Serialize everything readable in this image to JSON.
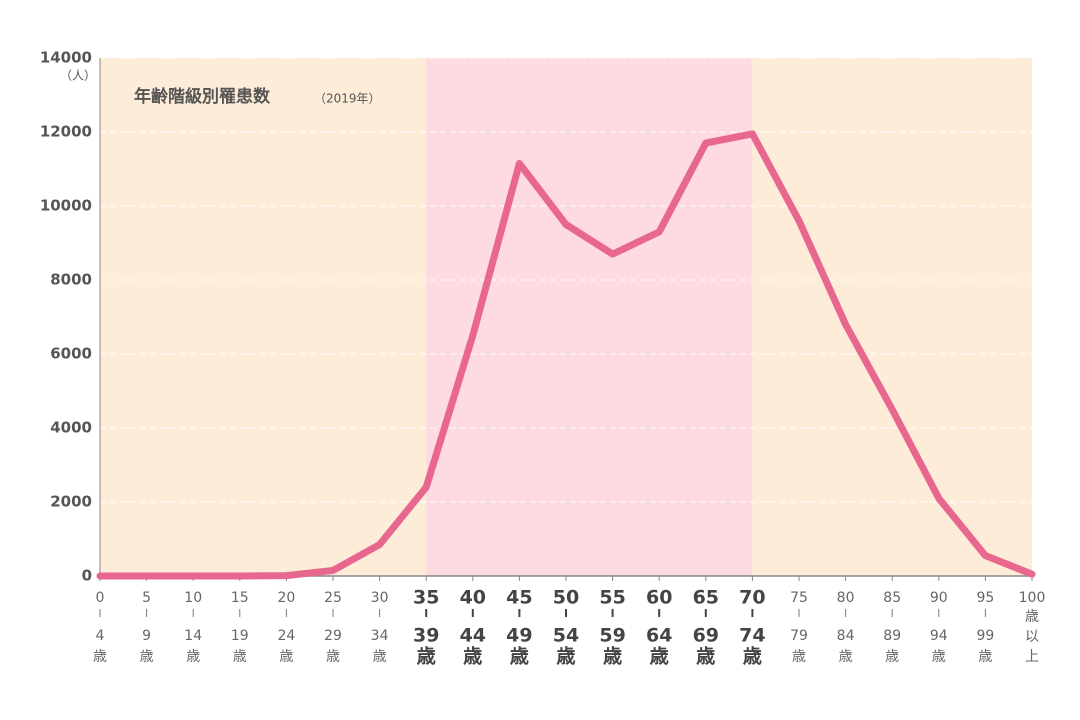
{
  "chart_data": {
    "type": "line",
    "title": "年齢階級別罹患数",
    "subtitle": "（2019年）",
    "y_unit": "（人）",
    "categories": [
      [
        "0",
        "4",
        "歳"
      ],
      [
        "5",
        "9",
        "歳"
      ],
      [
        "10",
        "14",
        "歳"
      ],
      [
        "15",
        "19",
        "歳"
      ],
      [
        "20",
        "24",
        "歳"
      ],
      [
        "25",
        "29",
        "歳"
      ],
      [
        "30",
        "34",
        "歳"
      ],
      [
        "35",
        "39",
        "歳"
      ],
      [
        "40",
        "44",
        "歳"
      ],
      [
        "45",
        "49",
        "歳"
      ],
      [
        "50",
        "54",
        "歳"
      ],
      [
        "55",
        "59",
        "歳"
      ],
      [
        "60",
        "64",
        "歳"
      ],
      [
        "65",
        "69",
        "歳"
      ],
      [
        "70",
        "74",
        "歳"
      ],
      [
        "75",
        "79",
        "歳"
      ],
      [
        "80",
        "84",
        "歳"
      ],
      [
        "85",
        "89",
        "歳"
      ],
      [
        "90",
        "94",
        "歳"
      ],
      [
        "95",
        "99",
        "歳"
      ],
      [
        "100",
        "歳",
        "以",
        "上"
      ]
    ],
    "values": [
      0,
      0,
      0,
      0,
      10,
      150,
      850,
      2400,
      6500,
      11150,
      9500,
      8700,
      9300,
      11700,
      11950,
      9600,
      6800,
      4500,
      2100,
      550,
      50
    ],
    "color": "#e8678f",
    "background_color": "#fdecd8",
    "highlight_color": "#fddbe0",
    "highlight_range": [
      7,
      14
    ],
    "ylim": [
      0,
      14000
    ],
    "yticks": [
      0,
      2000,
      4000,
      6000,
      8000,
      10000,
      12000,
      14000
    ],
    "grid": true
  }
}
